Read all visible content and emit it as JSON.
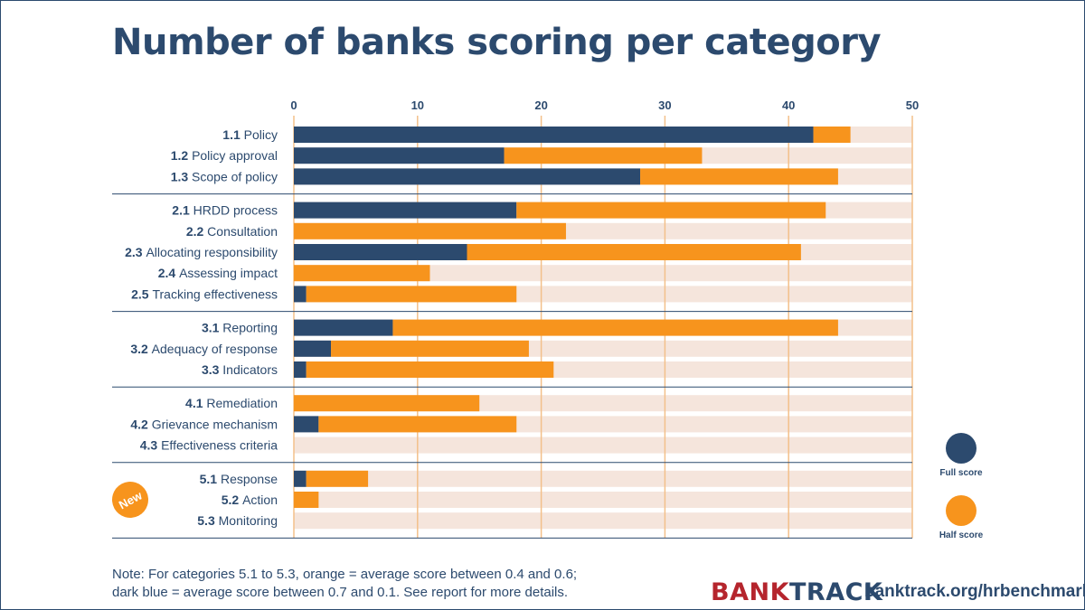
{
  "title": "Number of banks scoring per category",
  "note_line1": "Note: For categories 5.1 to 5.3, orange = average score between 0.4 and 0.6;",
  "note_line2": "dark blue = average score between 0.7 and 0.1. See report for more details.",
  "brand_part1": "BANK",
  "brand_part2": "TRACK",
  "url": "banktrack.org/hrbenchmark",
  "new_badge": "New",
  "legend": {
    "full": "Full score",
    "half": "Half score"
  },
  "colors": {
    "full": "#2c4a6e",
    "half": "#f7941d",
    "track": "#f5e5dc",
    "grid": "#f3c08a"
  },
  "chart_data": {
    "type": "bar",
    "orientation": "horizontal",
    "stacked": true,
    "xlim": [
      0,
      50
    ],
    "ticks": [
      0,
      10,
      20,
      30,
      40,
      50
    ],
    "groups": [
      {
        "rows": [
          {
            "code": "1.1",
            "label": "Policy",
            "full": 42,
            "half": 3
          },
          {
            "code": "1.2",
            "label": "Policy approval",
            "full": 17,
            "half": 16
          },
          {
            "code": "1.3",
            "label": "Scope of policy",
            "full": 28,
            "half": 16
          }
        ]
      },
      {
        "rows": [
          {
            "code": "2.1",
            "label": "HRDD process",
            "full": 18,
            "half": 25
          },
          {
            "code": "2.2",
            "label": "Consultation",
            "full": 0,
            "half": 22
          },
          {
            "code": "2.3",
            "label": "Allocating responsibility",
            "full": 14,
            "half": 27
          },
          {
            "code": "2.4",
            "label": "Assessing impact",
            "full": 0,
            "half": 11
          },
          {
            "code": "2.5",
            "label": "Tracking effectiveness",
            "full": 1,
            "half": 17
          }
        ]
      },
      {
        "rows": [
          {
            "code": "3.1",
            "label": "Reporting",
            "full": 8,
            "half": 36
          },
          {
            "code": "3.2",
            "label": "Adequacy of response",
            "full": 3,
            "half": 16
          },
          {
            "code": "3.3",
            "label": "Indicators",
            "full": 1,
            "half": 20
          }
        ]
      },
      {
        "rows": [
          {
            "code": "4.1",
            "label": "Remediation",
            "full": 0,
            "half": 15
          },
          {
            "code": "4.2",
            "label": "Grievance mechanism",
            "full": 2,
            "half": 16
          },
          {
            "code": "4.3",
            "label": "Effectiveness criteria",
            "full": 0,
            "half": 0
          }
        ]
      },
      {
        "rows": [
          {
            "code": "5.1",
            "label": "Response",
            "full": 1,
            "half": 5
          },
          {
            "code": "5.2",
            "label": "Action",
            "full": 0,
            "half": 2
          },
          {
            "code": "5.3",
            "label": "Monitoring",
            "full": 0,
            "half": 0
          }
        ]
      }
    ]
  }
}
